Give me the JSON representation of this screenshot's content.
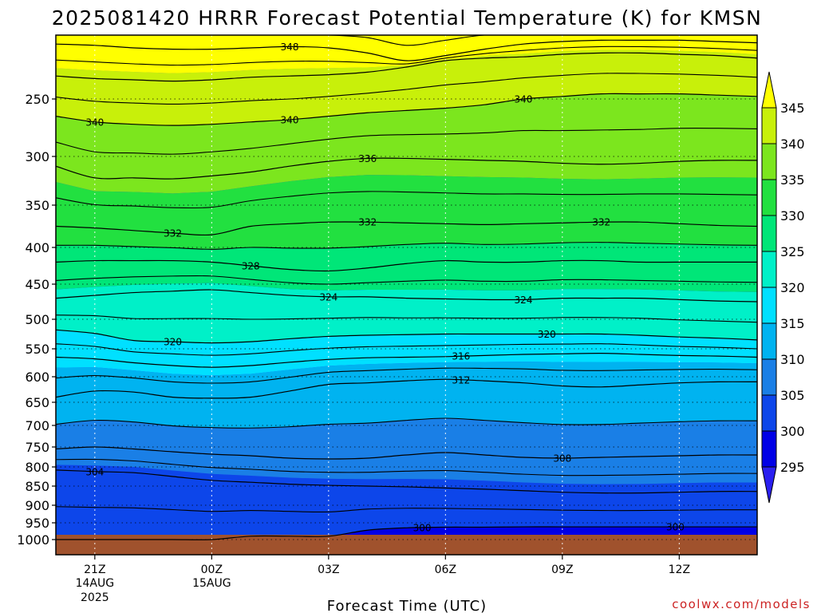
{
  "chart_data": {
    "type": "contour",
    "title": "2025081420 HRRR Forecast Potential Temperature (K) for KMSN",
    "xlabel": "Forecast Time (UTC)",
    "ylabel": "",
    "credit": "coolwx.com/models",
    "y_axis": {
      "scale": "pressure",
      "inverted": true,
      "range": [
        1030,
        200
      ],
      "ticks": [
        250,
        300,
        350,
        400,
        450,
        500,
        550,
        600,
        650,
        700,
        750,
        800,
        850,
        900,
        950,
        1000
      ]
    },
    "x_axis": {
      "range_hours": [
        0,
        18
      ],
      "ticks": [
        {
          "hour": 1,
          "label": "21Z",
          "sub1": "14AUG",
          "sub2": "2025"
        },
        {
          "hour": 4,
          "label": "00Z",
          "sub1": "15AUG",
          "sub2": ""
        },
        {
          "hour": 7,
          "label": "03Z",
          "sub1": "",
          "sub2": ""
        },
        {
          "hour": 10,
          "label": "06Z",
          "sub1": "",
          "sub2": ""
        },
        {
          "hour": 13,
          "label": "09Z",
          "sub1": "",
          "sub2": ""
        },
        {
          "hour": 16,
          "label": "12Z",
          "sub1": "",
          "sub2": ""
        }
      ]
    },
    "grid": true,
    "ground_color": "#a0522d",
    "colorbar": {
      "placement": "right",
      "levels": [
        295,
        300,
        305,
        310,
        315,
        320,
        325,
        330,
        335,
        340,
        345
      ],
      "colors": [
        "#2a1ff0",
        "#0000e6",
        "#0d46ea",
        "#1a7fe6",
        "#00b3f0",
        "#00e0ff",
        "#00f0c8",
        "#00e678",
        "#22e040",
        "#7ce61e",
        "#c8f00a",
        "#ffff00"
      ]
    },
    "hours": [
      0,
      1,
      2,
      3,
      4,
      5,
      6,
      7,
      8,
      9,
      10,
      11,
      12,
      13,
      14,
      15,
      16,
      17,
      18
    ],
    "isentropes": [
      {
        "theta": 300,
        "label": "300",
        "pressure": [
          1000,
          1000,
          1000,
          1000,
          1000,
          990,
          990,
          990,
          972,
          965,
          963,
          963,
          962,
          962,
          962,
          962,
          962,
          962,
          962
        ]
      },
      {
        "theta": 304,
        "label": "304",
        "pressure": [
          808,
          812,
          815,
          825,
          835,
          840,
          845,
          848,
          850,
          852,
          855,
          858,
          862,
          866,
          868,
          868,
          866,
          864,
          864
        ]
      },
      {
        "theta": 308,
        "label": "308",
        "pressure": [
          755,
          750,
          755,
          762,
          768,
          772,
          778,
          780,
          778,
          770,
          764,
          770,
          776,
          778,
          776,
          774,
          772,
          770,
          770
        ]
      },
      {
        "theta": 312,
        "label": "312",
        "pressure": [
          640,
          628,
          630,
          640,
          642,
          640,
          628,
          615,
          612,
          608,
          605,
          608,
          612,
          618,
          620,
          616,
          612,
          610,
          610
        ]
      },
      {
        "theta": 316,
        "label": "316",
        "pressure": [
          565,
          568,
          575,
          580,
          583,
          580,
          574,
          569,
          566,
          565,
          564,
          562,
          560,
          559,
          558,
          560,
          562,
          563,
          565
        ]
      },
      {
        "theta": 320,
        "label": "320",
        "pressure": [
          518,
          524,
          536,
          538,
          540,
          538,
          533,
          529,
          527,
          526,
          525,
          525,
          525,
          525,
          525,
          527,
          530,
          532,
          535
        ]
      },
      {
        "theta": 324,
        "label": "324",
        "pressure": [
          470,
          466,
          462,
          460,
          458,
          462,
          466,
          468,
          468,
          470,
          471,
          472,
          472,
          470,
          470,
          470,
          472,
          474,
          475
        ]
      },
      {
        "theta": 328,
        "label": "328",
        "pressure": [
          420,
          418,
          418,
          418,
          420,
          425,
          430,
          432,
          428,
          422,
          418,
          420,
          420,
          418,
          418,
          420,
          420,
          420,
          420
        ]
      },
      {
        "theta": 332,
        "label": "332",
        "pressure": [
          375,
          377,
          380,
          383,
          385,
          375,
          372,
          370,
          370,
          371,
          372,
          373,
          372,
          371,
          370,
          370,
          372,
          374,
          375
        ]
      },
      {
        "theta": 336,
        "label": "336",
        "pressure": [
          310,
          322,
          322,
          323,
          320,
          316,
          310,
          305,
          302,
          302,
          303,
          304,
          305,
          307,
          308,
          307,
          305,
          304,
          304
        ]
      },
      {
        "theta": 340,
        "label": "340",
        "pressure": [
          265,
          270,
          272,
          273,
          272,
          270,
          268,
          265,
          262,
          260,
          258,
          255,
          250,
          248,
          246,
          246,
          246,
          247,
          248
        ]
      },
      {
        "theta": 344,
        "label": "",
        "pressure": [
          232,
          234,
          235,
          236,
          235,
          233,
          232,
          231,
          229,
          225,
          220,
          218,
          217,
          215,
          214,
          214,
          215,
          216,
          218
        ]
      },
      {
        "theta": 348,
        "label": "348",
        "pressure": [
          207,
          208,
          210,
          211,
          211,
          210,
          209,
          210,
          214,
          220,
          216,
          211,
          207,
          205,
          204,
          204,
          204,
          205,
          206
        ]
      }
    ]
  }
}
